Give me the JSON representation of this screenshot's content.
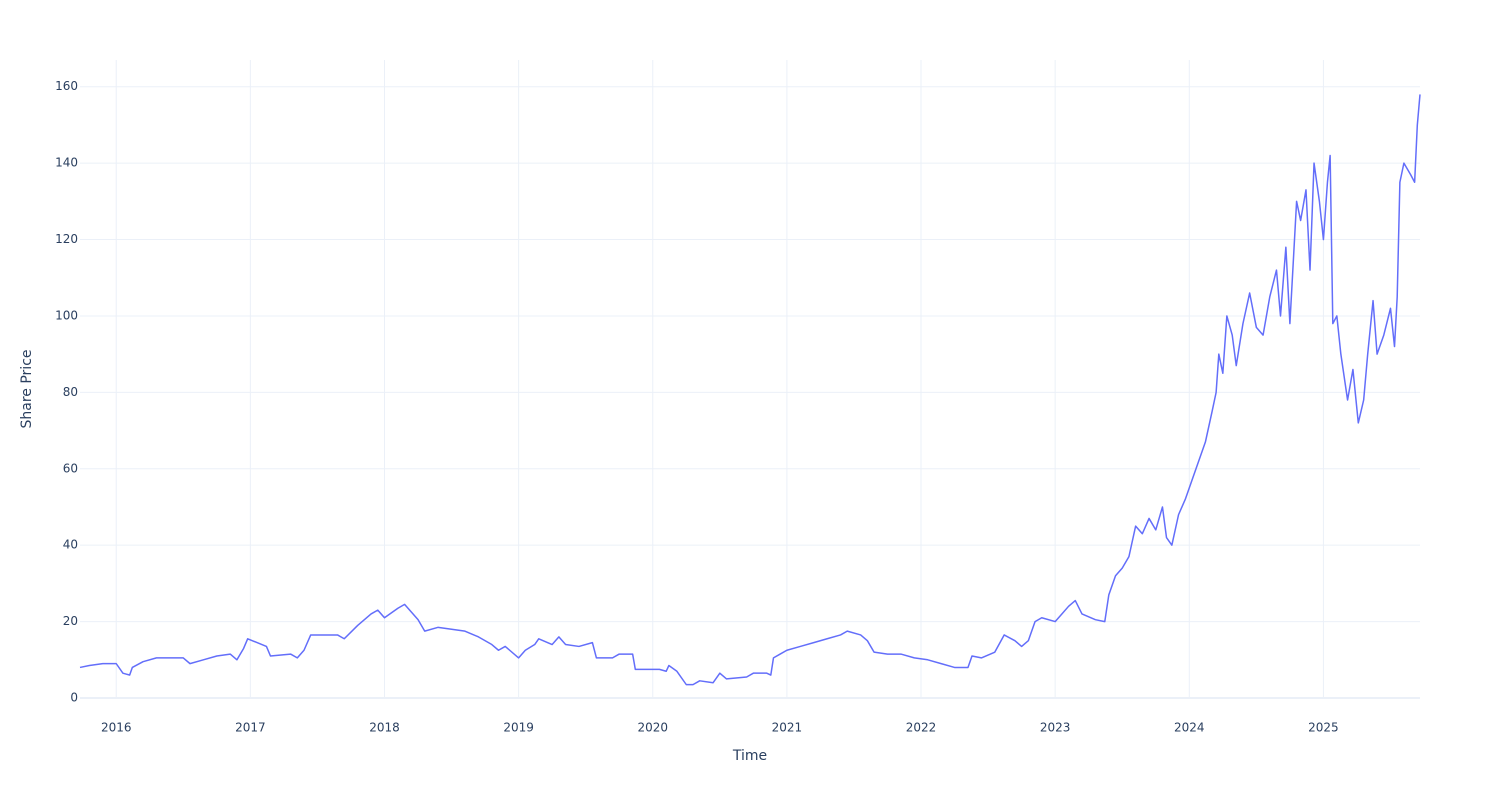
{
  "chart_data": {
    "type": "line",
    "xlabel": "Time",
    "ylabel": "Share Price",
    "x": [
      2015.73,
      2015.8,
      2015.9,
      2016.0,
      2016.05,
      2016.1,
      2016.12,
      2016.2,
      2016.3,
      2016.4,
      2016.5,
      2016.55,
      2016.65,
      2016.75,
      2016.85,
      2016.9,
      2016.95,
      2016.98,
      2017.05,
      2017.12,
      2017.15,
      2017.3,
      2017.35,
      2017.4,
      2017.45,
      2017.55,
      2017.65,
      2017.7,
      2017.8,
      2017.9,
      2017.95,
      2018.0,
      2018.1,
      2018.15,
      2018.2,
      2018.25,
      2018.3,
      2018.4,
      2018.5,
      2018.6,
      2018.7,
      2018.8,
      2018.85,
      2018.9,
      2019.0,
      2019.05,
      2019.12,
      2019.15,
      2019.25,
      2019.3,
      2019.35,
      2019.45,
      2019.55,
      2019.58,
      2019.7,
      2019.75,
      2019.85,
      2019.87,
      2019.95,
      2020.05,
      2020.1,
      2020.12,
      2020.18,
      2020.25,
      2020.3,
      2020.35,
      2020.45,
      2020.5,
      2020.55,
      2020.7,
      2020.75,
      2020.85,
      2020.88,
      2020.9,
      2020.95,
      2021.0,
      2021.1,
      2021.2,
      2021.3,
      2021.4,
      2021.45,
      2021.55,
      2021.6,
      2021.65,
      2021.75,
      2021.85,
      2021.95,
      2022.05,
      2022.15,
      2022.25,
      2022.35,
      2022.38,
      2022.45,
      2022.55,
      2022.62,
      2022.7,
      2022.75,
      2022.8,
      2022.85,
      2022.9,
      2023.0,
      2023.05,
      2023.1,
      2023.15,
      2023.2,
      2023.3,
      2023.37,
      2023.4,
      2023.45,
      2023.5,
      2023.55,
      2023.6,
      2023.65,
      2023.7,
      2023.75,
      2023.8,
      2023.83,
      2023.87,
      2023.92,
      2023.97,
      2024.02,
      2024.07,
      2024.12,
      2024.17,
      2024.2,
      2024.22,
      2024.25,
      2024.28,
      2024.32,
      2024.35,
      2024.4,
      2024.45,
      2024.5,
      2024.55,
      2024.6,
      2024.65,
      2024.68,
      2024.72,
      2024.75,
      2024.8,
      2024.83,
      2024.87,
      2024.9,
      2024.93,
      2024.97,
      2025.0,
      2025.03,
      2025.05,
      2025.07,
      2025.1,
      2025.13,
      2025.18,
      2025.22,
      2025.26,
      2025.3,
      2025.33,
      2025.37,
      2025.4,
      2025.45,
      2025.5,
      2025.53,
      2025.55,
      2025.57,
      2025.6,
      2025.65,
      2025.68,
      2025.7,
      2025.72
    ],
    "values": [
      8,
      8.5,
      9,
      9,
      6.5,
      6,
      8,
      9.5,
      10.5,
      10.5,
      10.5,
      9,
      10,
      11,
      11.5,
      10,
      13,
      15.5,
      14.5,
      13.5,
      11,
      11.5,
      10.5,
      12.5,
      16.5,
      16.5,
      16.5,
      15.5,
      19,
      22,
      23,
      21,
      23.5,
      24.5,
      22.5,
      20.5,
      17.5,
      18.5,
      18,
      17.5,
      16,
      14,
      12.5,
      13.5,
      10.5,
      12.5,
      14,
      15.5,
      14,
      16,
      14,
      13.5,
      14.5,
      10.5,
      10.5,
      11.5,
      11.5,
      7.5,
      7.5,
      7.5,
      7,
      8.5,
      7,
      3.5,
      3.5,
      4.5,
      4,
      6.5,
      5,
      5.5,
      6.5,
      6.5,
      6,
      10.5,
      11.5,
      12.5,
      13.5,
      14.5,
      15.5,
      16.5,
      17.5,
      16.5,
      15,
      12,
      11.5,
      11.5,
      10.5,
      10,
      9,
      8,
      8,
      11,
      10.5,
      12,
      16.5,
      15,
      13.5,
      15,
      20,
      21,
      20,
      22,
      24,
      25.5,
      22,
      20.5,
      20,
      27,
      32,
      34,
      37,
      45,
      43,
      47,
      44,
      50,
      42,
      40,
      48,
      52,
      57,
      62,
      67,
      75,
      80,
      90,
      85,
      100,
      95,
      87,
      98,
      106,
      97,
      95,
      105,
      112,
      100,
      118,
      98,
      130,
      125,
      133,
      112,
      140,
      130,
      120,
      135,
      142,
      98,
      100,
      90,
      78,
      86,
      72,
      78,
      90,
      104,
      90,
      95,
      102,
      92,
      105,
      135,
      140,
      137,
      135,
      150,
      158
    ],
    "color": "#636efa",
    "xlim": [
      2015.73,
      2025.72
    ],
    "xticks": [
      2016,
      2017,
      2018,
      2019,
      2020,
      2021,
      2022,
      2023,
      2024,
      2025
    ],
    "ylim": [
      0,
      167
    ],
    "yticks": [
      0,
      20,
      40,
      60,
      80,
      100,
      120,
      140,
      160
    ],
    "grid": true
  }
}
